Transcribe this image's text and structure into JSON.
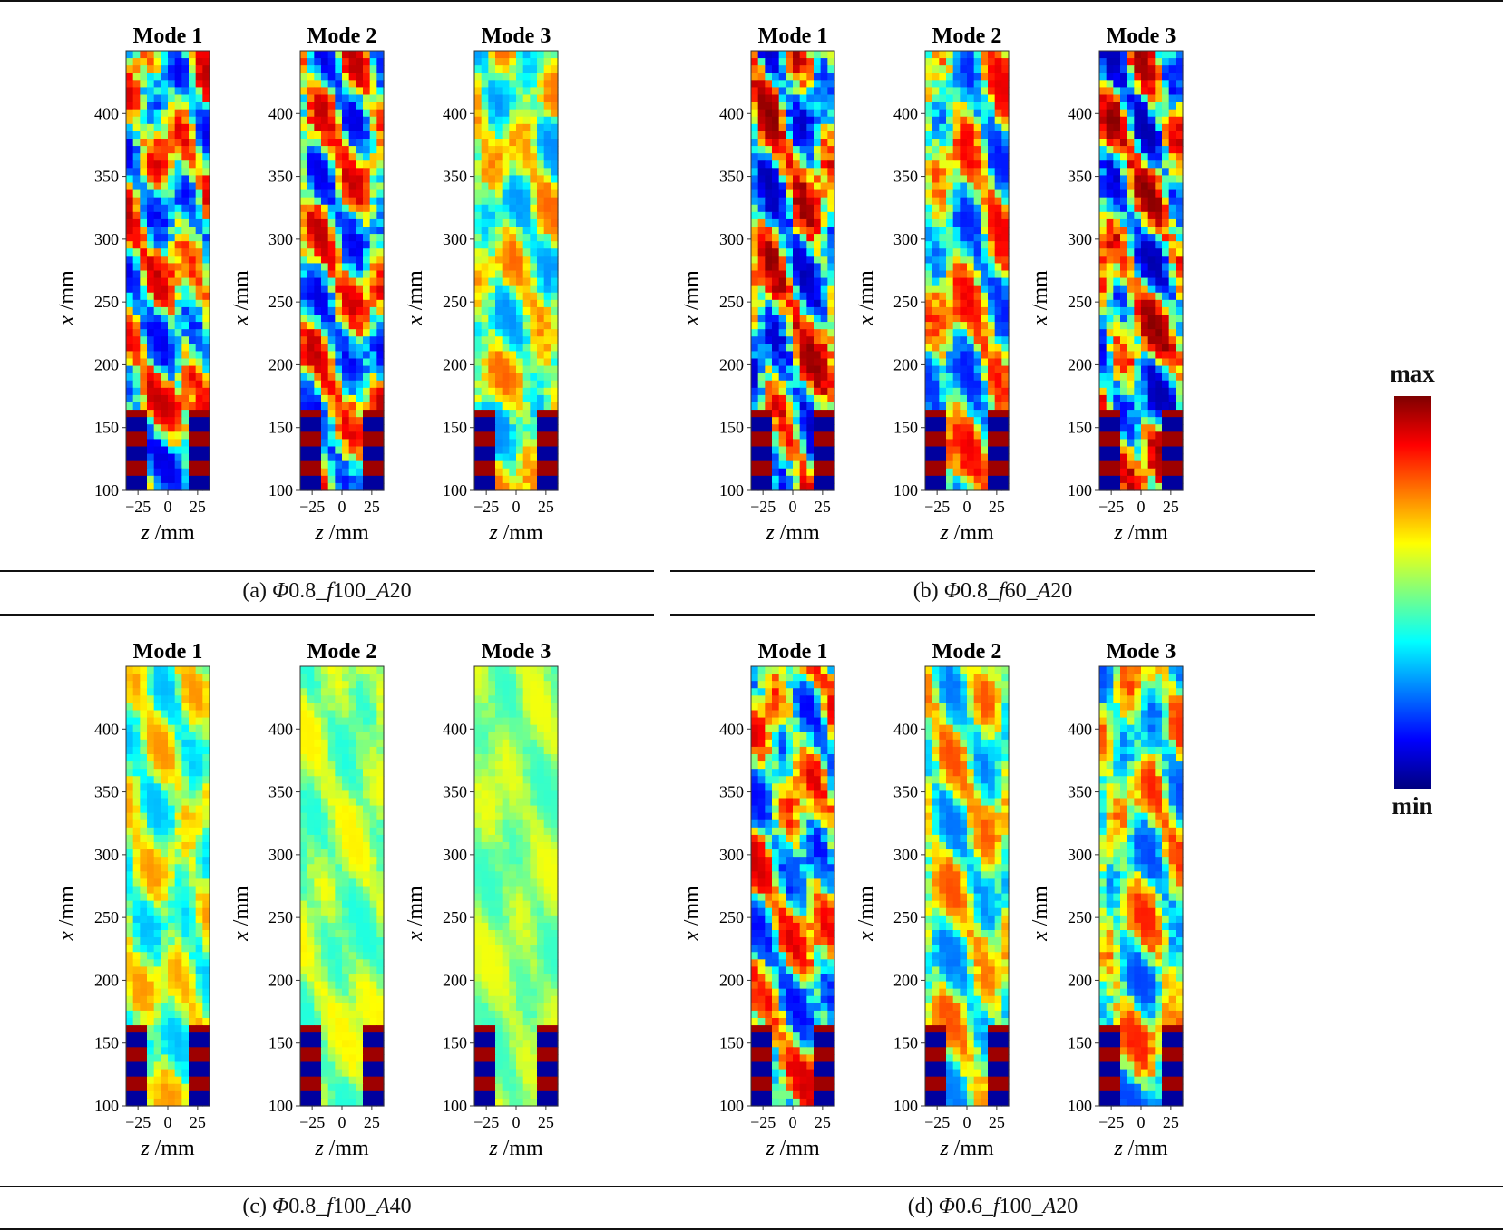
{
  "panels": [
    {
      "id": "a",
      "caption_prefix": "(a) ",
      "caption_phi": "Φ",
      "caption_rest": "0.8_",
      "caption_f": "f",
      "caption_num": "100_",
      "caption_A": "A",
      "caption_amp": "20"
    },
    {
      "id": "b",
      "caption_prefix": "(b) ",
      "caption_phi": "Φ",
      "caption_rest": "0.8_",
      "caption_f": "f",
      "caption_num": "60_",
      "caption_A": "A",
      "caption_amp": "20"
    },
    {
      "id": "c",
      "caption_prefix": "(c) ",
      "caption_phi": "Φ",
      "caption_rest": "0.8_",
      "caption_f": "f",
      "caption_num": "100_",
      "caption_A": "A",
      "caption_amp": "40"
    },
    {
      "id": "d",
      "caption_prefix": "(d) ",
      "caption_phi": "Φ",
      "caption_rest": "0.6_",
      "caption_f": "f",
      "caption_num": "100_",
      "caption_A": "A",
      "caption_amp": "20"
    }
  ],
  "mode_titles": [
    "Mode 1",
    "Mode 2",
    "Mode 3"
  ],
  "axes": {
    "x_label_var": "x",
    "x_label_unit": " /mm",
    "z_label_var": "z",
    "z_label_unit": " /mm",
    "x_ticks": [
      "100",
      "150",
      "200",
      "250",
      "300",
      "350",
      "400"
    ],
    "z_ticks": [
      "−25",
      "0",
      "25"
    ]
  },
  "colorbar": {
    "max_label": "max",
    "min_label": "min",
    "colormap": "jet",
    "colors": [
      "#00007f",
      "#0000ff",
      "#007fff",
      "#00ffff",
      "#7fff7f",
      "#ffff00",
      "#ff7f00",
      "#ff0000",
      "#7f0000"
    ]
  },
  "activity": {
    "a": [
      0.9,
      0.9,
      0.55
    ],
    "b": [
      1.0,
      0.8,
      1.0
    ],
    "c": [
      0.45,
      0.25,
      0.2
    ],
    "d": [
      0.85,
      0.6,
      0.7
    ]
  }
}
